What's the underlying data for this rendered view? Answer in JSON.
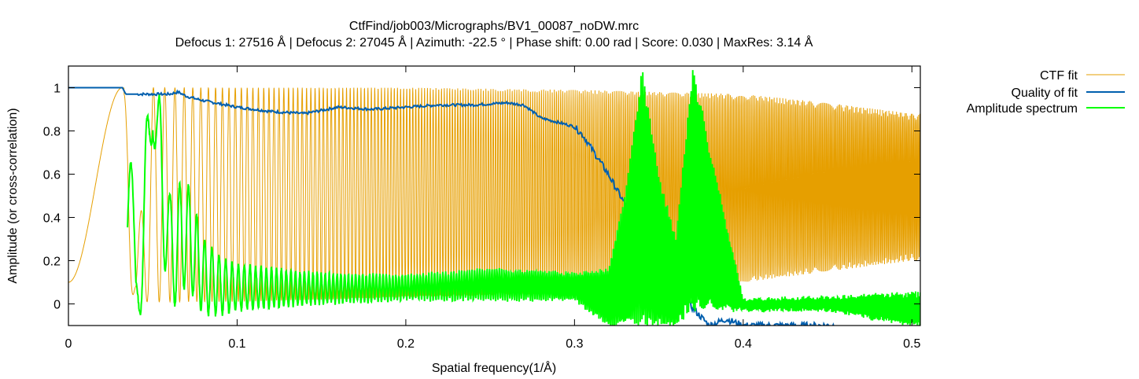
{
  "chart_data": {
    "type": "line",
    "title": "CtfFind/job003/Micrographs/BV1_00087_noDW.mrc",
    "subtitle": "Defocus 1: 27516 Å | Defocus 2: 27045 Å | Azimuth: -22.5 ° | Phase shift: 0.00 rad | Score: 0.030 | MaxRes: 3.14 Å",
    "xlabel": "Spatial frequency(1/Å)",
    "ylabel": "Amplitude (or cross-correlation)",
    "xlim": [
      0,
      0.505
    ],
    "ylim": [
      -0.1,
      1.1
    ],
    "xticks": [
      0,
      0.1,
      0.2,
      0.3,
      0.4,
      0.5
    ],
    "xtick_labels": [
      "0",
      "0.1",
      "0.2",
      "0.3",
      "0.4",
      "0.5"
    ],
    "yticks": [
      0,
      0.2,
      0.4,
      0.6,
      0.8,
      1
    ],
    "ytick_labels": [
      "0",
      "0.2",
      "0.4",
      "0.6",
      "0.8",
      "1"
    ],
    "grid": false,
    "legend_position": "outside-top-right",
    "series": [
      {
        "name": "CTF fit",
        "color": "#e69f00",
        "description_points": {
          "x": [
            0,
            0.01,
            0.02,
            0.03,
            0.035,
            0.04,
            0.045,
            0.05,
            0.1,
            0.2,
            0.3,
            0.4,
            0.45,
            0.5
          ],
          "upper_envelope": [
            0.1,
            0.4,
            0.8,
            1.0,
            0.95,
            0.2,
            0.6,
            1.0,
            1.0,
            1.0,
            0.99,
            0.97,
            0.93,
            0.88
          ],
          "lower_envelope": [
            0.1,
            0.1,
            0.1,
            0.1,
            0.1,
            0.01,
            0.01,
            0.01,
            0.01,
            0.03,
            0.05,
            0.1,
            0.15,
            0.2
          ]
        },
        "kind": "oscillating"
      },
      {
        "name": "Quality of fit",
        "color": "#005fae",
        "x": [
          0,
          0.032,
          0.034,
          0.05,
          0.06,
          0.065,
          0.07,
          0.08,
          0.1,
          0.12,
          0.14,
          0.16,
          0.18,
          0.2,
          0.22,
          0.24,
          0.26,
          0.27,
          0.28,
          0.29,
          0.3,
          0.305,
          0.31,
          0.32,
          0.33,
          0.34,
          0.35,
          0.36,
          0.37,
          0.38,
          0.39,
          0.4,
          0.45
        ],
        "y": [
          1.0,
          1.0,
          0.97,
          0.97,
          0.97,
          0.98,
          0.96,
          0.94,
          0.91,
          0.89,
          0.88,
          0.91,
          0.9,
          0.91,
          0.92,
          0.92,
          0.93,
          0.92,
          0.86,
          0.84,
          0.82,
          0.78,
          0.72,
          0.6,
          0.46,
          0.38,
          0.28,
          0.12,
          -0.02,
          -0.1,
          -0.07,
          -0.1,
          -0.1
        ]
      },
      {
        "name": "Amplitude spectrum",
        "color": "#00ff00",
        "description_points": {
          "x": [
            0.035,
            0.04,
            0.045,
            0.05,
            0.055,
            0.06,
            0.065,
            0.07,
            0.08,
            0.09,
            0.1,
            0.15,
            0.2,
            0.25,
            0.3,
            0.32,
            0.33,
            0.34,
            0.35,
            0.36,
            0.37,
            0.4,
            0.45,
            0.5
          ],
          "upper_envelope": [
            1.1,
            0.2,
            0.8,
            1.0,
            0.95,
            0.5,
            0.55,
            0.58,
            0.3,
            0.22,
            0.18,
            0.14,
            0.13,
            0.16,
            0.14,
            0.16,
            0.5,
            1.1,
            0.6,
            0.3,
            1.1,
            0.02,
            0.03,
            0.05
          ],
          "lower_envelope": [
            0.0,
            -0.07,
            -0.02,
            0.8,
            0.3,
            -0.02,
            0.0,
            0.1,
            -0.05,
            -0.05,
            -0.03,
            0.0,
            0.02,
            0.02,
            0.02,
            -0.1,
            -0.1,
            -0.1,
            -0.1,
            -0.1,
            -0.03,
            -0.03,
            -0.03,
            -0.1
          ]
        },
        "kind": "oscillating"
      }
    ]
  }
}
